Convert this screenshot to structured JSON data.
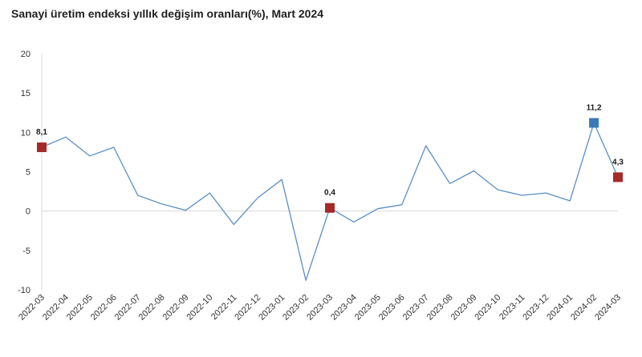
{
  "title": "Sanayi üretim endeksi yıllık değişim oranları(%), Mart 2024",
  "colors": {
    "line": "#5a8fc4",
    "marker_red": "#a52a2a",
    "marker_blue": "#3c78b8",
    "grid": "#d9d9d9"
  },
  "chart_data": {
    "type": "line",
    "title": "Sanayi üretim endeksi yıllık değişim oranları(%), Mart 2024",
    "xlabel": "",
    "ylabel": "",
    "ylim": [
      -10,
      20
    ],
    "yticks": [
      -10,
      -5,
      0,
      5,
      10,
      15,
      20
    ],
    "grid": "horizontal zero line only",
    "legend": "none",
    "categories": [
      "2022-03",
      "2022-04",
      "2022-05",
      "2022-06",
      "2022-07",
      "2022-08",
      "2022-09",
      "2022-10",
      "2022-11",
      "2022-12",
      "2023-01",
      "2023-02",
      "2023-03",
      "2023-04",
      "2023-05",
      "2023-06",
      "2023-07",
      "2023-08",
      "2023-09",
      "2023-10",
      "2023-11",
      "2023-12",
      "2024-01",
      "2024-02",
      "2024-03"
    ],
    "series": [
      {
        "values": [
          8.1,
          9.4,
          7.0,
          8.1,
          2.0,
          0.9,
          0.1,
          2.3,
          -1.7,
          1.7,
          4.0,
          -8.8,
          0.4,
          -1.4,
          0.3,
          0.8,
          8.3,
          3.5,
          5.1,
          2.7,
          2.0,
          2.3,
          1.3,
          11.2,
          4.3
        ]
      }
    ],
    "highlighted_points": [
      {
        "category": "2022-03",
        "value": 8.1,
        "label": "8,1",
        "color": "#a52a2a"
      },
      {
        "category": "2023-03",
        "value": 0.4,
        "label": "0,4",
        "color": "#a52a2a"
      },
      {
        "category": "2024-02",
        "value": 11.2,
        "label": "11,2",
        "color": "#3c78b8"
      },
      {
        "category": "2024-03",
        "value": 4.3,
        "label": "4,3",
        "color": "#a52a2a"
      }
    ]
  }
}
